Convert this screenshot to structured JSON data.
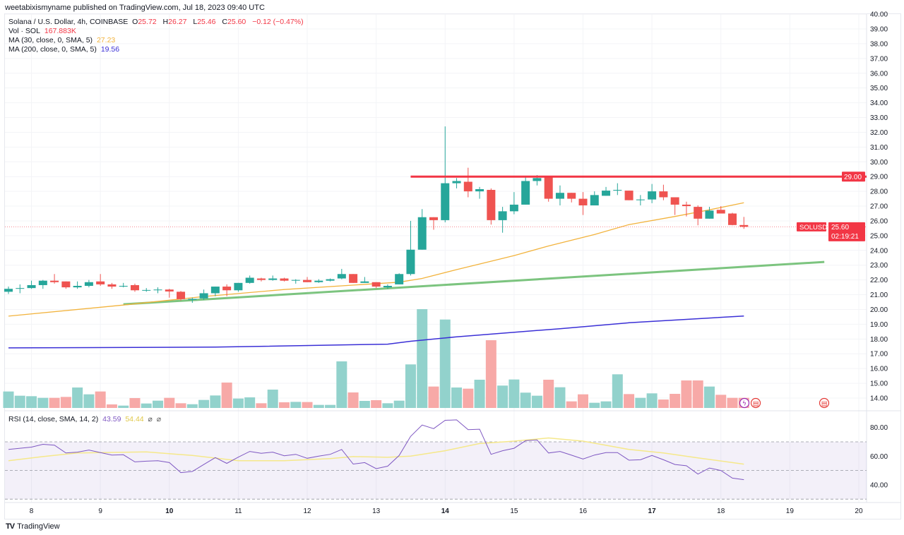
{
  "publisher": "weetabixismyname published on TradingView.com, Jul 18, 2023 09:40 UTC",
  "legend": {
    "symbol": "Solana / U.S. Dollar, 4h, COINBASE",
    "o_label": "O",
    "o": "25.72",
    "h_label": "H",
    "h": "26.27",
    "l_label": "L",
    "l": "25.46",
    "c_label": "C",
    "c": "25.60",
    "change": "−0.12 (−0.47%)",
    "vol_label": "Vol · SOL",
    "vol": "167.883K",
    "ma30_label": "MA (30, close, 0, SMA, 5)",
    "ma30": "27.23",
    "ma200_label": "MA (200, close, 0, SMA, 5)",
    "ma200": "19.56",
    "rsi_label": "RSI (14, close, SMA, 14, 2)",
    "rsi": "43.59",
    "rsi_ma": "54.44",
    "na1": "⌀",
    "na2": "⌀"
  },
  "footer": {
    "logo": "TV",
    "brand": "TradingView"
  },
  "colors": {
    "up": "#26a69a",
    "down": "#ef5350",
    "vol_up": "#92d2cc",
    "vol_down": "#f7a9a7",
    "ma30": "#f2b33d",
    "ma200": "#3a2fd6",
    "rsi": "#7e57c2",
    "rsi_ma": "#f5e88a",
    "trend_green": "#7cc47f",
    "level_red": "#f23645"
  },
  "chart_data": [
    {
      "type": "candlestick",
      "interval": "4h",
      "price_axis": {
        "range": [
          14,
          40
        ],
        "ticks": [
          "14.00",
          "15.00",
          "16.00",
          "17.00",
          "18.00",
          "19.00",
          "20.00",
          "21.00",
          "22.00",
          "23.00",
          "24.00",
          "25.00",
          "26.00",
          "27.00",
          "28.00",
          "29.00",
          "30.00",
          "31.00",
          "32.00",
          "33.00",
          "34.00",
          "35.00",
          "36.00",
          "37.00",
          "38.00",
          "39.00",
          "40.00"
        ]
      },
      "time_axis": {
        "ticks": [
          {
            "label": "8",
            "day": 8,
            "bold": false
          },
          {
            "label": "9",
            "day": 9,
            "bold": false
          },
          {
            "label": "10",
            "day": 10,
            "bold": true
          },
          {
            "label": "11",
            "day": 11,
            "bold": false
          },
          {
            "label": "12",
            "day": 12,
            "bold": false
          },
          {
            "label": "13",
            "day": 13,
            "bold": false
          },
          {
            "label": "14",
            "day": 14,
            "bold": true
          },
          {
            "label": "15",
            "day": 15,
            "bold": false
          },
          {
            "label": "16",
            "day": 16,
            "bold": false
          },
          {
            "label": "17",
            "day": 17,
            "bold": true
          },
          {
            "label": "18",
            "day": 18,
            "bold": false
          },
          {
            "label": "19",
            "day": 19,
            "bold": false
          },
          {
            "label": "20",
            "day": 20,
            "bold": false
          }
        ]
      },
      "candle_fields": [
        "time",
        "open",
        "high",
        "low",
        "close",
        "volume_k"
      ],
      "candles": [
        [
          "07-07 16:00",
          21.2,
          21.55,
          21.05,
          21.4,
          273
        ],
        [
          "07-07 20:00",
          21.4,
          21.7,
          21.1,
          21.45,
          203
        ],
        [
          "07-08 00:00",
          21.45,
          21.95,
          21.4,
          21.65,
          195
        ],
        [
          "07-08 04:00",
          21.65,
          22.0,
          21.4,
          21.95,
          168
        ],
        [
          "07-08 08:00",
          21.95,
          22.4,
          21.75,
          21.85,
          168
        ],
        [
          "07-08 12:00",
          21.9,
          21.9,
          21.4,
          21.5,
          183
        ],
        [
          "07-08 16:00",
          21.5,
          21.9,
          21.4,
          21.6,
          339
        ],
        [
          "07-08 20:00",
          21.6,
          22.0,
          21.5,
          21.85,
          226
        ],
        [
          "07-09 00:00",
          21.9,
          22.4,
          21.6,
          21.7,
          273
        ],
        [
          "07-09 04:00",
          21.7,
          21.8,
          21.4,
          21.55,
          59
        ],
        [
          "07-09 08:00",
          21.55,
          21.8,
          21.5,
          21.6,
          39
        ],
        [
          "07-09 12:00",
          21.65,
          21.75,
          21.2,
          21.3,
          164
        ],
        [
          "07-09 16:00",
          21.3,
          21.45,
          21.2,
          21.32,
          74
        ],
        [
          "07-09 20:00",
          21.3,
          21.5,
          21.1,
          21.35,
          121
        ],
        [
          "07-10 00:00",
          21.35,
          21.4,
          20.8,
          21.22,
          168
        ],
        [
          "07-10 04:00",
          21.2,
          21.25,
          20.6,
          20.7,
          78
        ],
        [
          "07-10 08:00",
          20.65,
          20.8,
          20.45,
          20.72,
          62
        ],
        [
          "07-10 12:00",
          20.75,
          21.35,
          20.65,
          21.1,
          133
        ],
        [
          "07-10 16:00",
          21.1,
          21.55,
          20.9,
          21.55,
          207
        ],
        [
          "07-10 20:00",
          21.55,
          21.7,
          20.9,
          21.3,
          421
        ],
        [
          "07-11 00:00",
          21.3,
          21.8,
          21.2,
          21.8,
          156
        ],
        [
          "07-11 04:00",
          21.8,
          22.3,
          21.75,
          22.15,
          176
        ],
        [
          "07-11 08:00",
          22.1,
          22.15,
          21.9,
          22.0,
          78
        ],
        [
          "07-11 12:00",
          22.0,
          22.3,
          21.95,
          22.1,
          304
        ],
        [
          "07-11 16:00",
          22.1,
          22.15,
          21.9,
          21.95,
          94
        ],
        [
          "07-11 20:00",
          21.95,
          22.05,
          21.75,
          22.0,
          101
        ],
        [
          "07-12 00:00",
          22.0,
          22.2,
          21.85,
          21.85,
          98
        ],
        [
          "07-12 04:00",
          21.85,
          22.05,
          21.8,
          21.95,
          51
        ],
        [
          "07-12 08:00",
          21.95,
          22.1,
          21.9,
          22.05,
          51
        ],
        [
          "07-12 12:00",
          22.1,
          22.75,
          22.05,
          22.4,
          772
        ],
        [
          "07-12 16:00",
          22.4,
          22.4,
          21.8,
          21.8,
          257
        ],
        [
          "07-12 20:00",
          21.8,
          22.2,
          21.8,
          21.9,
          117
        ],
        [
          "07-13 00:00",
          21.85,
          21.85,
          21.45,
          21.55,
          129
        ],
        [
          "07-13 04:00",
          21.5,
          21.7,
          21.4,
          21.6,
          78
        ],
        [
          "07-13 08:00",
          21.7,
          22.45,
          21.7,
          22.4,
          121
        ],
        [
          "07-13 12:00",
          22.4,
          26.0,
          22.3,
          24.05,
          722
        ],
        [
          "07-13 16:00",
          24.05,
          26.8,
          24.05,
          26.25,
          1638
        ],
        [
          "07-13 20:00",
          26.25,
          26.25,
          25.4,
          26.05,
          355
        ],
        [
          "07-14 00:00",
          26.05,
          32.4,
          25.9,
          28.55,
          1466
        ],
        [
          "07-14 04:00",
          28.55,
          28.9,
          28.2,
          28.7,
          339
        ],
        [
          "07-14 08:00",
          28.65,
          29.6,
          27.6,
          28.0,
          320
        ],
        [
          "07-14 12:00",
          28.0,
          28.3,
          27.5,
          28.15,
          468
        ],
        [
          "07-14 16:00",
          28.1,
          28.2,
          25.75,
          26.05,
          1123
        ],
        [
          "07-14 20:00",
          26.05,
          26.95,
          25.2,
          26.65,
          371
        ],
        [
          "07-15 00:00",
          26.65,
          27.95,
          26.45,
          27.1,
          472
        ],
        [
          "07-15 04:00",
          27.1,
          29.05,
          27.1,
          28.7,
          254
        ],
        [
          "07-15 08:00",
          28.7,
          29.1,
          28.4,
          28.9,
          203
        ],
        [
          "07-15 12:00",
          29.0,
          29.0,
          27.3,
          27.5,
          468
        ],
        [
          "07-15 16:00",
          27.5,
          28.4,
          27.05,
          27.9,
          343
        ],
        [
          "07-15 20:00",
          27.9,
          27.9,
          27.25,
          27.5,
          109
        ],
        [
          "07-16 00:00",
          27.5,
          27.95,
          26.4,
          27.05,
          226
        ],
        [
          "07-16 04:00",
          27.05,
          28.0,
          27.05,
          27.75,
          86
        ],
        [
          "07-16 08:00",
          27.7,
          28.3,
          27.7,
          28.05,
          109
        ],
        [
          "07-16 12:00",
          28.05,
          28.55,
          27.75,
          28.1,
          558
        ],
        [
          "07-16 16:00",
          28.05,
          28.05,
          27.4,
          27.4,
          230
        ],
        [
          "07-16 20:00",
          27.4,
          27.75,
          27.05,
          27.45,
          168
        ],
        [
          "07-17 00:00",
          27.45,
          28.5,
          27.2,
          28.0,
          242
        ],
        [
          "07-17 04:00",
          28.0,
          28.45,
          27.4,
          27.6,
          140
        ],
        [
          "07-17 08:00",
          27.6,
          27.6,
          26.4,
          27.1,
          234
        ],
        [
          "07-17 12:00",
          27.1,
          27.3,
          26.3,
          27.0,
          456
        ],
        [
          "07-17 16:00",
          26.95,
          27.05,
          25.7,
          26.15,
          456
        ],
        [
          "07-17 20:00",
          26.15,
          26.95,
          26.15,
          26.7,
          355
        ],
        [
          "07-18 00:00",
          26.75,
          27.0,
          26.5,
          26.5,
          218
        ],
        [
          "07-18 04:00",
          26.5,
          26.55,
          25.7,
          25.72,
          168
        ],
        [
          "07-18 08:00",
          25.72,
          26.27,
          25.46,
          25.6,
          167.883
        ]
      ],
      "ma30": [
        [
          "07-07 16:00",
          19.55
        ],
        [
          "07-09 08:00",
          20.3
        ],
        [
          "07-10 12:00",
          20.88
        ],
        [
          "07-11 16:00",
          21.35
        ],
        [
          "07-13 08:00",
          21.85
        ],
        [
          "07-13 16:00",
          22.1
        ],
        [
          "07-14 04:00",
          22.7
        ],
        [
          "07-14 16:00",
          23.27
        ],
        [
          "07-15 00:00",
          23.65
        ],
        [
          "07-15 12:00",
          24.3
        ],
        [
          "07-16 04:00",
          25.08
        ],
        [
          "07-16 16:00",
          25.75
        ],
        [
          "07-17 08:00",
          26.3
        ],
        [
          "07-17 20:00",
          26.75
        ],
        [
          "07-18 08:00",
          27.23
        ]
      ],
      "ma200": [
        [
          "07-07 16:00",
          17.4
        ],
        [
          "07-10 16:00",
          17.45
        ],
        [
          "07-13 04:00",
          17.65
        ],
        [
          "07-13 12:00",
          17.85
        ],
        [
          "07-14 04:00",
          18.15
        ],
        [
          "07-15 16:00",
          18.7
        ],
        [
          "07-16 16:00",
          19.1
        ],
        [
          "07-18 08:00",
          19.56
        ]
      ],
      "drawings": {
        "resistance": {
          "price": 29.0,
          "from": "07-13 12:00",
          "label": "29.00"
        },
        "trendline": {
          "from": [
            "07-09 08:00",
            20.35
          ],
          "to": [
            "07-19 12:00",
            23.22
          ]
        }
      },
      "last_price": {
        "symbol": "SOLUSD",
        "price": "25.60",
        "countdown": "02:19:21",
        "value": 25.6
      }
    },
    {
      "type": "line",
      "title": "RSI (14, close, SMA, 14, 2)",
      "y_axis": {
        "ticks": [
          "40.00",
          "60.00",
          "80.00"
        ],
        "band": [
          30,
          70
        ],
        "mid": 50
      },
      "rsi": [
        64.7,
        65.5,
        66.3,
        68.3,
        67.7,
        62.2,
        62.8,
        64.3,
        62.5,
        60.8,
        61,
        56,
        56.5,
        56.8,
        55.5,
        48.5,
        49.3,
        54.2,
        59,
        55,
        59.3,
        63.3,
        62,
        62.8,
        60.3,
        61.3,
        58.5,
        60,
        61.3,
        64.7,
        54.5,
        55.5,
        51.3,
        53,
        60.5,
        73.8,
        81.7,
        79.2,
        85,
        85.3,
        78.5,
        78.8,
        61.3,
        63.8,
        65.5,
        70.8,
        71.3,
        62.2,
        63.3,
        60.7,
        58,
        60.8,
        62.5,
        62.5,
        57.2,
        57.5,
        60.5,
        57.5,
        54.2,
        53.3,
        47.5,
        51.7,
        50,
        44.7,
        43.59
      ],
      "rsi_ma": [
        [
          "07-07 16:00",
          56.8
        ],
        [
          "07-08 04:00",
          59.7
        ],
        [
          "07-08 16:00",
          62.2
        ],
        [
          "07-09 16:00",
          63
        ],
        [
          "07-10 08:00",
          60.5
        ],
        [
          "07-11 00:00",
          56.8
        ],
        [
          "07-11 16:00",
          56.8
        ],
        [
          "07-12 08:00",
          58.3
        ],
        [
          "07-12 16:00",
          59.7
        ],
        [
          "07-13 04:00",
          59.2
        ],
        [
          "07-13 12:00",
          60
        ],
        [
          "07-14 00:00",
          63.8
        ],
        [
          "07-14 12:00",
          68.8
        ],
        [
          "07-15 00:00",
          70.5
        ],
        [
          "07-15 12:00",
          72.7
        ],
        [
          "07-16 00:00",
          70.5
        ],
        [
          "07-16 16:00",
          64.7
        ],
        [
          "07-17 04:00",
          62.2
        ],
        [
          "07-17 16:00",
          58.8
        ],
        [
          "07-18 08:00",
          54.44
        ]
      ]
    }
  ]
}
